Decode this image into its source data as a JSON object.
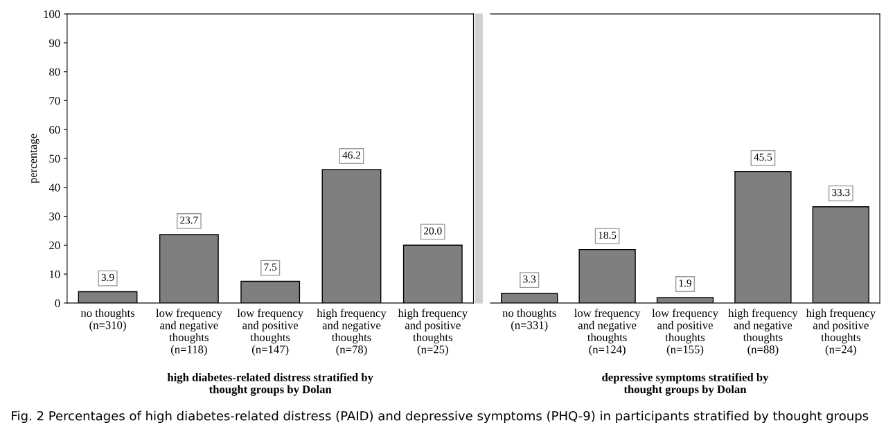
{
  "chart_data": [
    {
      "type": "bar",
      "ylabel": "percentage",
      "xlabel": "high diabetes-related distress stratified by\nthought groups by Dolan",
      "categories": [
        "no thoughts\n(n=310)",
        "low frequency\nand negative\nthoughts\n(n=118)",
        "low frequency\nand positive\nthoughts\n(n=147)",
        "high frequency\nand negative\nthoughts\n(n=78)",
        "high frequency\nand positive\nthoughts\n(n=25)"
      ],
      "values": [
        3.9,
        23.7,
        7.5,
        46.2,
        20.0
      ],
      "value_labels": [
        "3.9",
        "23.7",
        "7.5",
        "46.2",
        "20.0"
      ],
      "color": "#7f7f7f",
      "ylim": [
        0,
        100
      ],
      "yticks": [
        0,
        10,
        20,
        30,
        40,
        50,
        60,
        70,
        80,
        90,
        100
      ],
      "annotations": [
        "Fig. 2 Percentages of high diabetes-related distress (PAID) and depressive symptoms (PHQ-9) in participants stratified by thought groups"
      ]
    },
    {
      "type": "bar",
      "xlabel": "depressive symptoms stratified by\nthought groups by Dolan",
      "categories": [
        "no thoughts\n(n=331)",
        "low frequency\nand negative\nthoughts\n(n=124)",
        "low frequency\nand positive\nthoughts\n(n=155)",
        "high frequency\nand negative\nthoughts\n(n=88)",
        "high frequency\nand positive\nthoughts\n(n=24)"
      ],
      "values": [
        3.3,
        18.5,
        1.9,
        45.5,
        33.3
      ],
      "value_labels": [
        "3.3",
        "18.5",
        "1.9",
        "45.5",
        "33.3"
      ],
      "color": "#7f7f7f",
      "ylim": [
        0,
        100
      ],
      "tick_labels": "x"
    }
  ]
}
